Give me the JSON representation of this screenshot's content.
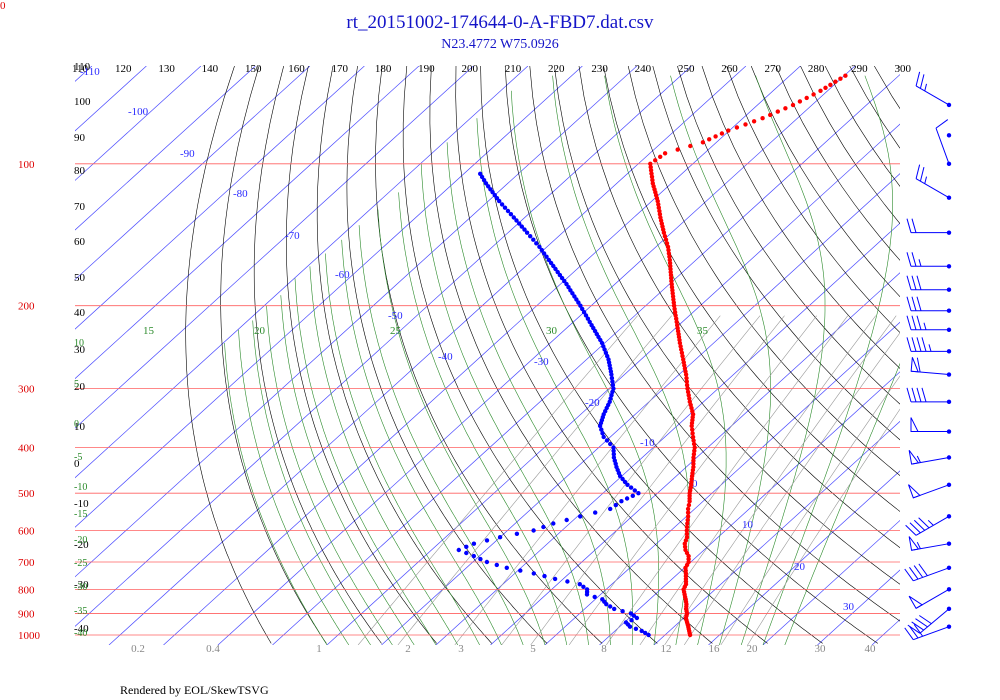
{
  "corner_text": "0",
  "chart_data": {
    "type": "scatter",
    "title": "rt_20151002-174644-0-A-FBD7.dat.csv",
    "subtitle": "N23.4772 W75.0926",
    "footer": "Rendered by EOL/SkewTSVG",
    "pressure_labels": [
      "100",
      "200",
      "300",
      "400",
      "500",
      "600",
      "700",
      "800",
      "900",
      "1000"
    ],
    "pressure_levels": [
      100,
      200,
      300,
      400,
      500,
      600,
      700,
      800,
      900,
      1000
    ],
    "top_temp_labels": [
      "110",
      "120",
      "130",
      "140",
      "150",
      "160",
      "170",
      "180",
      "190",
      "200",
      "210",
      "220",
      "230",
      "240",
      "250",
      "260",
      "270",
      "280",
      "290",
      "300"
    ],
    "left_labels": [
      "110",
      "100",
      "90",
      "80",
      "70",
      "60",
      "50",
      "40",
      "30",
      "20",
      "10",
      "0",
      "-10",
      "-20",
      "-30",
      "-40"
    ],
    "isotherm_labels": [
      "-110",
      "-100",
      "-90",
      "-80",
      "-70",
      "-60",
      "-50",
      "-40",
      "-30",
      "-20",
      "-10",
      "0",
      "10",
      "20",
      "30"
    ],
    "moist_labels": [
      "15",
      "20",
      "25",
      "30",
      "35"
    ],
    "left_green_labels": [
      "10",
      "5",
      "0",
      "-5",
      "-10",
      "-15",
      "-20",
      "-25",
      "-30",
      "-35",
      "-40"
    ],
    "mixing_labels": [
      "0.2",
      "0.4",
      "1",
      "2",
      "3",
      "5",
      "8",
      "12",
      "16",
      "20",
      "30",
      "40"
    ],
    "colors": {
      "temperature": "#ff0000",
      "dewpoint": "#0000ff",
      "isobar": "#ff6060",
      "isotherm": "#4a4aff",
      "dry_adiabat": "#000000",
      "moist_adiabat": "#2a8a2a",
      "mixing_ratio": "#999999"
    },
    "temperature": {
      "name": "Temperature",
      "points": [
        [
          1000,
          24.6
        ],
        [
          980,
          23.6
        ],
        [
          960,
          22.6
        ],
        [
          940,
          21.5
        ],
        [
          920,
          20.4
        ],
        [
          900,
          19.7
        ],
        [
          880,
          18.6
        ],
        [
          860,
          17.7
        ],
        [
          840,
          16.6
        ],
        [
          820,
          15.4
        ],
        [
          800,
          14.2
        ],
        [
          780,
          13.6
        ],
        [
          760,
          12.5
        ],
        [
          740,
          11.4
        ],
        [
          720,
          10.2
        ],
        [
          700,
          9.6
        ],
        [
          680,
          8.4
        ],
        [
          660,
          6.6
        ],
        [
          640,
          5.2
        ],
        [
          620,
          4.3
        ],
        [
          600,
          2.9
        ],
        [
          580,
          1.6
        ],
        [
          560,
          0.3
        ],
        [
          540,
          -1.2
        ],
        [
          520,
          -2.5
        ],
        [
          500,
          -4.1
        ],
        [
          480,
          -5.5
        ],
        [
          460,
          -7.1
        ],
        [
          440,
          -8.7
        ],
        [
          420,
          -10.6
        ],
        [
          400,
          -12.4
        ],
        [
          380,
          -14.8
        ],
        [
          360,
          -17.3
        ],
        [
          340,
          -19.4
        ],
        [
          320,
          -22.5
        ],
        [
          300,
          -25.6
        ],
        [
          280,
          -28.7
        ],
        [
          260,
          -32.3
        ],
        [
          240,
          -36.2
        ],
        [
          220,
          -40.3
        ],
        [
          200,
          -44.8
        ],
        [
          180,
          -49.6
        ],
        [
          160,
          -54.8
        ],
        [
          150,
          -57.8
        ],
        [
          140,
          -61.4
        ],
        [
          130,
          -65.1
        ],
        [
          120,
          -68.9
        ],
        [
          110,
          -73.4
        ],
        [
          100,
          -77.8
        ],
        [
          95,
          -77.2
        ],
        [
          90,
          -72.5
        ],
        [
          85,
          -70.2
        ],
        [
          80,
          -66.4
        ],
        [
          75,
          -63.5
        ],
        [
          70,
          -61.3
        ],
        [
          65,
          -59.8
        ]
      ]
    },
    "dewpoint": {
      "name": "Dew point",
      "points": [
        [
          1000,
          17.0
        ],
        [
          980,
          14.9
        ],
        [
          960,
          11.9
        ],
        [
          940,
          10.3
        ],
        [
          920,
          11.4
        ],
        [
          900,
          9.4
        ],
        [
          880,
          5.4
        ],
        [
          860,
          3.0
        ],
        [
          840,
          1.3
        ],
        [
          820,
          -2.5
        ],
        [
          800,
          -3.5
        ],
        [
          780,
          -5.9
        ],
        [
          760,
          -11.5
        ],
        [
          740,
          -16.5
        ],
        [
          720,
          -22.6
        ],
        [
          700,
          -27.4
        ],
        [
          680,
          -31.0
        ],
        [
          660,
          -35.0
        ],
        [
          640,
          -33.5
        ],
        [
          620,
          -30.0
        ],
        [
          600,
          -25.2
        ],
        [
          580,
          -23.0
        ],
        [
          560,
          -19.5
        ],
        [
          540,
          -15.5
        ],
        [
          520,
          -15.0
        ],
        [
          500,
          -13.5
        ],
        [
          480,
          -17.2
        ],
        [
          460,
          -20.3
        ],
        [
          440,
          -22.8
        ],
        [
          420,
          -25.2
        ],
        [
          400,
          -27.3
        ],
        [
          380,
          -31.2
        ],
        [
          360,
          -34.1
        ],
        [
          340,
          -35.8
        ],
        [
          320,
          -37.2
        ],
        [
          300,
          -39.2
        ],
        [
          280,
          -42.4
        ],
        [
          260,
          -46.0
        ],
        [
          240,
          -50.5
        ],
        [
          220,
          -56.0
        ],
        [
          200,
          -62.0
        ],
        [
          180,
          -68.9
        ],
        [
          160,
          -77.0
        ],
        [
          150,
          -81.4
        ],
        [
          140,
          -86.5
        ],
        [
          130,
          -92.0
        ],
        [
          120,
          -98.0
        ],
        [
          110,
          -104.0
        ],
        [
          105,
          -107.0
        ]
      ]
    },
    "winds": [
      {
        "p": 75,
        "dir": 300,
        "spd": 25
      },
      {
        "p": 87,
        "dir": 270,
        "spd": 0
      },
      {
        "p": 100,
        "dir": 340,
        "spd": 10
      },
      {
        "p": 118,
        "dir": 300,
        "spd": 25
      },
      {
        "p": 140,
        "dir": 270,
        "spd": 20
      },
      {
        "p": 165,
        "dir": 270,
        "spd": 25
      },
      {
        "p": 185,
        "dir": 270,
        "spd": 30
      },
      {
        "p": 205,
        "dir": 270,
        "spd": 30
      },
      {
        "p": 225,
        "dir": 270,
        "spd": 35
      },
      {
        "p": 250,
        "dir": 270,
        "spd": 45
      },
      {
        "p": 280,
        "dir": 275,
        "spd": 60
      },
      {
        "p": 320,
        "dir": 270,
        "spd": 40
      },
      {
        "p": 370,
        "dir": 270,
        "spd": 50
      },
      {
        "p": 420,
        "dir": 260,
        "spd": 55
      },
      {
        "p": 480,
        "dir": 250,
        "spd": 50
      },
      {
        "p": 560,
        "dir": 240,
        "spd": 45
      },
      {
        "p": 640,
        "dir": 260,
        "spd": 55
      },
      {
        "p": 720,
        "dir": 250,
        "spd": 40
      },
      {
        "p": 800,
        "dir": 240,
        "spd": 50
      },
      {
        "p": 880,
        "dir": 230,
        "spd": 40
      },
      {
        "p": 960,
        "dir": 250,
        "spd": 30
      }
    ]
  }
}
